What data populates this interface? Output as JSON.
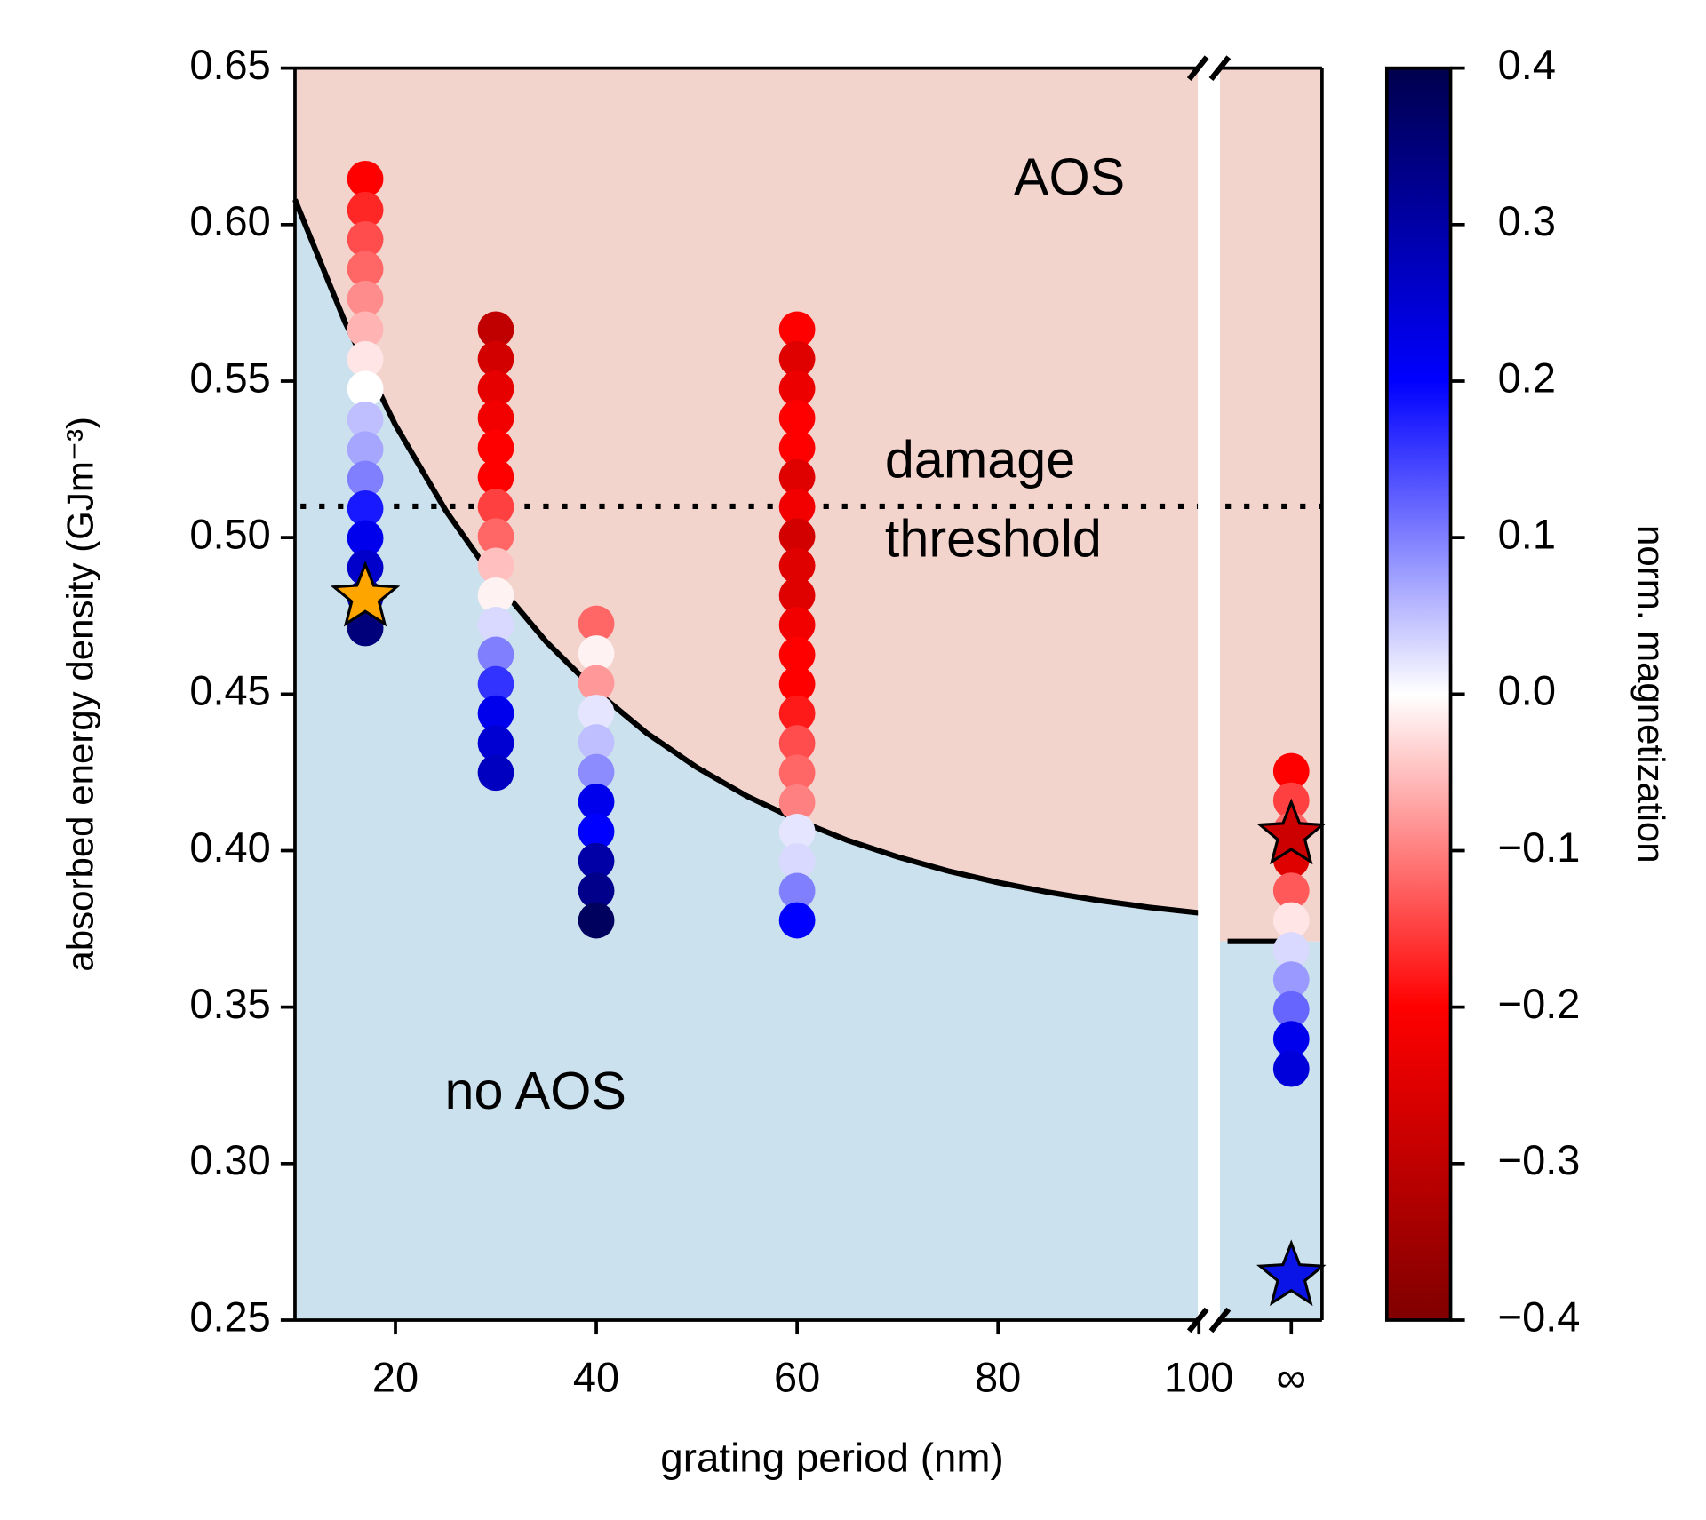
{
  "chart_data": {
    "type": "scatter",
    "xlabel": "grating period (nm)",
    "ylabel": "absorbed energy density (GJm⁻³)",
    "xlim": [
      10,
      101
    ],
    "ylim": [
      0.25,
      0.65
    ],
    "xticks": [
      20,
      40,
      60,
      80,
      100
    ],
    "yticks": [
      0.25,
      {
        "value": 0.3,
        "label": "0.30"
      },
      0.35,
      {
        "value": 0.4,
        "label": "0.40"
      },
      0.45,
      {
        "value": 0.5,
        "label": "0.50"
      },
      0.55,
      {
        "value": 0.6,
        "label": "0.60"
      },
      0.65
    ],
    "inf_label": "∞",
    "columns": [
      {
        "x": 17,
        "y": [
          0.6146,
          0.6047,
          0.5953,
          0.5858,
          0.5763,
          0.5665,
          0.557,
          0.5475,
          0.5377,
          0.5282,
          0.5188,
          0.5093,
          0.4998,
          0.4904,
          0.4809,
          0.4711
        ],
        "magnetization": [
          -0.2,
          -0.17,
          -0.14,
          -0.12,
          -0.09,
          -0.06,
          -0.02,
          0.0,
          0.05,
          0.07,
          0.1,
          0.18,
          0.22,
          0.26,
          0.3,
          0.35
        ]
      },
      {
        "x": 30,
        "y": [
          0.5665,
          0.5571,
          0.5476,
          0.5382,
          0.5287,
          0.5193,
          0.5098,
          0.5004,
          0.491,
          0.4815,
          0.4721,
          0.4626,
          0.4532,
          0.4438,
          0.4343,
          0.4249
        ],
        "magnetization": [
          -0.3,
          -0.27,
          -0.24,
          -0.22,
          -0.2,
          -0.2,
          -0.15,
          -0.12,
          -0.05,
          -0.01,
          0.03,
          0.1,
          0.16,
          0.22,
          0.25,
          0.27
        ]
      },
      {
        "x": 40,
        "y": [
          0.4725,
          0.463,
          0.4535,
          0.444,
          0.4346,
          0.4251,
          0.4156,
          0.4061,
          0.3967,
          0.3872,
          0.3777
        ],
        "magnetization": [
          -0.12,
          -0.01,
          -0.08,
          0.02,
          0.05,
          0.09,
          0.22,
          0.2,
          0.3,
          0.33,
          0.38
        ]
      },
      {
        "x": 60,
        "y": [
          0.5665,
          0.5571,
          0.5476,
          0.5382,
          0.5287,
          0.5193,
          0.5098,
          0.5004,
          0.491,
          0.4815,
          0.4721,
          0.4626,
          0.4532,
          0.4438,
          0.4343,
          0.4249,
          0.4154,
          0.406,
          0.3966,
          0.3871,
          0.3777
        ],
        "magnetization": [
          -0.2,
          -0.25,
          -0.23,
          -0.2,
          -0.2,
          -0.25,
          -0.22,
          -0.27,
          -0.25,
          -0.25,
          -0.22,
          -0.2,
          -0.2,
          -0.18,
          -0.14,
          -0.12,
          -0.1,
          0.02,
          0.03,
          0.1,
          0.2
        ]
      }
    ],
    "inf_column": {
      "y": [
        0.4254,
        0.416,
        0.4065,
        0.397,
        0.3872,
        0.3777,
        0.3682,
        0.3588,
        0.3493,
        0.3398,
        0.3303
      ],
      "magnetization": [
        -0.2,
        -0.15,
        -0.12,
        -0.25,
        -0.13,
        -0.02,
        0.03,
        0.08,
        0.12,
        0.22,
        0.24
      ]
    },
    "stars": {
      "x": [
        17
      ],
      "y": [
        0.481
      ],
      "colors": [
        "#ffa500"
      ]
    },
    "inf_stars": {
      "y": [
        0.405,
        0.264
      ],
      "colors": [
        "#cc0000",
        "#0a14e6"
      ]
    },
    "threshold_curve": {
      "x": [
        10,
        15,
        20,
        25,
        30,
        35,
        40,
        45,
        50,
        55,
        60,
        65,
        70,
        75,
        80,
        85,
        90,
        95,
        100
      ],
      "y": [
        0.608,
        0.5687,
        0.536,
        0.5087,
        0.4859,
        0.4668,
        0.4509,
        0.4376,
        0.4266,
        0.4174,
        0.4098,
        0.4033,
        0.398,
        0.3935,
        0.3898,
        0.3867,
        0.3841,
        0.3819,
        0.3801
      ]
    },
    "threshold_inf": 0.371,
    "damage_threshold": 0.51,
    "damage_label": [
      "damage",
      "threshold"
    ],
    "aos_label": "AOS",
    "no_aos_label": "no AOS",
    "region_colors": {
      "aos": "#f3d4cd",
      "no_aos": "#cce1ee"
    },
    "colorbar": {
      "label": "norm. magnetization",
      "colormap": "seismic_r",
      "clim": [
        -0.4,
        0.4
      ],
      "ticks": [
        {
          "value": -0.4,
          "label": "−0.4"
        },
        {
          "value": -0.3,
          "label": "−0.3"
        },
        {
          "value": -0.2,
          "label": "−0.2"
        },
        {
          "value": -0.1,
          "label": "−0.1"
        },
        {
          "value": 0,
          "label": "0.0"
        },
        0.1,
        0.2,
        0.3,
        0.4
      ]
    }
  }
}
